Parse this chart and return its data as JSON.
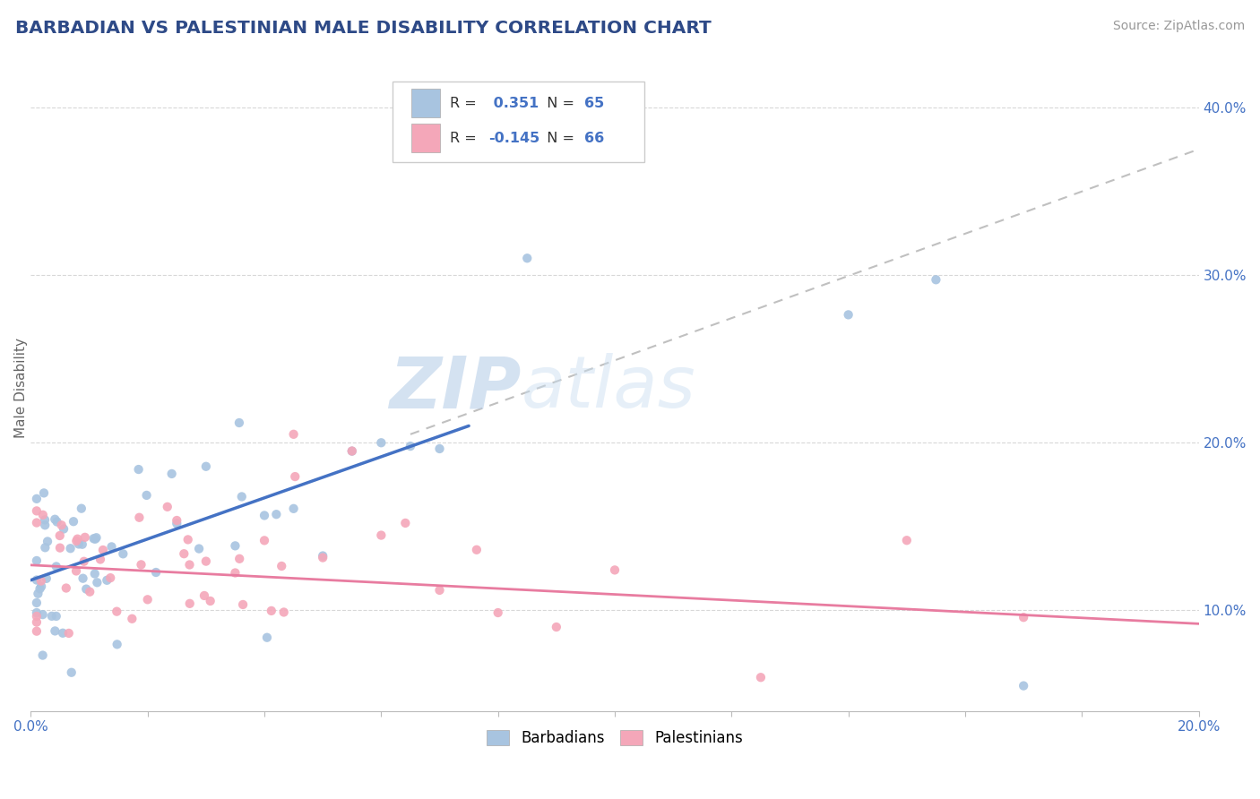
{
  "title": "BARBADIAN VS PALESTINIAN MALE DISABILITY CORRELATION CHART",
  "source": "Source: ZipAtlas.com",
  "ylabel": "Male Disability",
  "xlim": [
    0.0,
    0.2
  ],
  "ylim": [
    0.04,
    0.425
  ],
  "xticks": [
    0.0,
    0.02,
    0.04,
    0.06,
    0.08,
    0.1,
    0.12,
    0.14,
    0.16,
    0.18,
    0.2
  ],
  "yticks": [
    0.1,
    0.2,
    0.3,
    0.4
  ],
  "xtick_labels": [
    "0.0%",
    "",
    "",
    "",
    "",
    "",
    "",
    "",
    "",
    "",
    "20.0%"
  ],
  "ytick_labels": [
    "10.0%",
    "20.0%",
    "30.0%",
    "40.0%"
  ],
  "barbadian_color": "#a8c4e0",
  "palestinian_color": "#f4a7b9",
  "barbadian_line_color": "#4472c4",
  "palestinian_line_color": "#e87ca0",
  "trend_line_color": "#c0c0c0",
  "R_barbadian": 0.351,
  "N_barbadian": 65,
  "R_palestinian": -0.145,
  "N_palestinian": 66,
  "legend_label_1": "Barbadians",
  "legend_label_2": "Palestinians",
  "watermark_zip": "ZIP",
  "watermark_atlas": "atlas",
  "background_color": "#ffffff",
  "grid_color": "#d8d8d8",
  "title_color": "#2e4a87",
  "source_color": "#999999",
  "barb_line_x0": 0.0,
  "barb_line_y0": 0.118,
  "barb_line_x1": 0.075,
  "barb_line_y1": 0.21,
  "pal_line_x0": 0.0,
  "pal_line_y0": 0.127,
  "pal_line_x1": 0.2,
  "pal_line_y1": 0.092,
  "gray_line_x0": 0.065,
  "gray_line_y0": 0.205,
  "gray_line_x1": 0.2,
  "gray_line_y1": 0.375
}
